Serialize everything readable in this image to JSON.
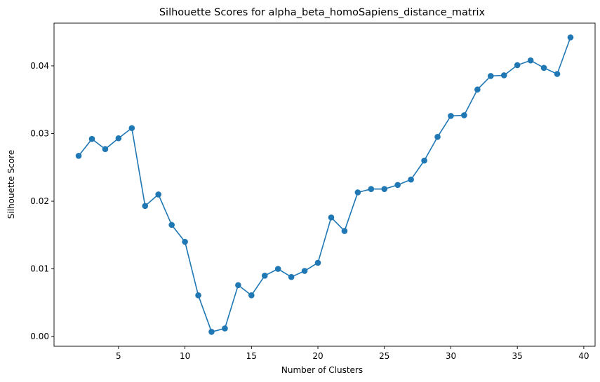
{
  "chart_data": {
    "type": "line",
    "title": "Silhouette Scores for alpha_beta_homoSapiens_distance_matrix",
    "xlabel": "Number of Clusters",
    "ylabel": "Silhouette Score",
    "xlim": [
      0.15,
      40.85
    ],
    "ylim": [
      -0.00143,
      0.04631
    ],
    "xticks": [
      5,
      10,
      15,
      20,
      25,
      30,
      35,
      40
    ],
    "yticks": [
      0.0,
      0.01,
      0.02,
      0.03,
      0.04
    ],
    "xtick_labels": [
      "5",
      "10",
      "15",
      "20",
      "25",
      "30",
      "35",
      "40"
    ],
    "ytick_labels": [
      "0.00",
      "0.01",
      "0.02",
      "0.03",
      "0.04"
    ],
    "grid": false,
    "color": "#1f77b4",
    "marker": "circle",
    "series": [
      {
        "x": [
          2,
          3,
          4,
          5,
          6,
          7,
          8,
          9,
          10,
          11,
          12,
          13,
          14,
          15,
          16,
          17,
          18,
          19,
          20,
          21,
          22,
          23,
          24,
          25,
          26,
          27,
          28,
          29,
          30,
          31,
          32,
          33,
          34,
          35,
          36,
          37,
          38,
          39
        ],
        "y": [
          0.0267,
          0.0292,
          0.0277,
          0.0293,
          0.0308,
          0.0193,
          0.021,
          0.0165,
          0.014,
          0.0061,
          0.0007,
          0.0012,
          0.0076,
          0.0061,
          0.009,
          0.01,
          0.0088,
          0.0097,
          0.0109,
          0.0176,
          0.0156,
          0.0213,
          0.0218,
          0.0218,
          0.0224,
          0.0232,
          0.026,
          0.0295,
          0.0326,
          0.0327,
          0.0365,
          0.0385,
          0.0386,
          0.0401,
          0.0408,
          0.0397,
          0.0388,
          0.0442
        ]
      }
    ]
  }
}
